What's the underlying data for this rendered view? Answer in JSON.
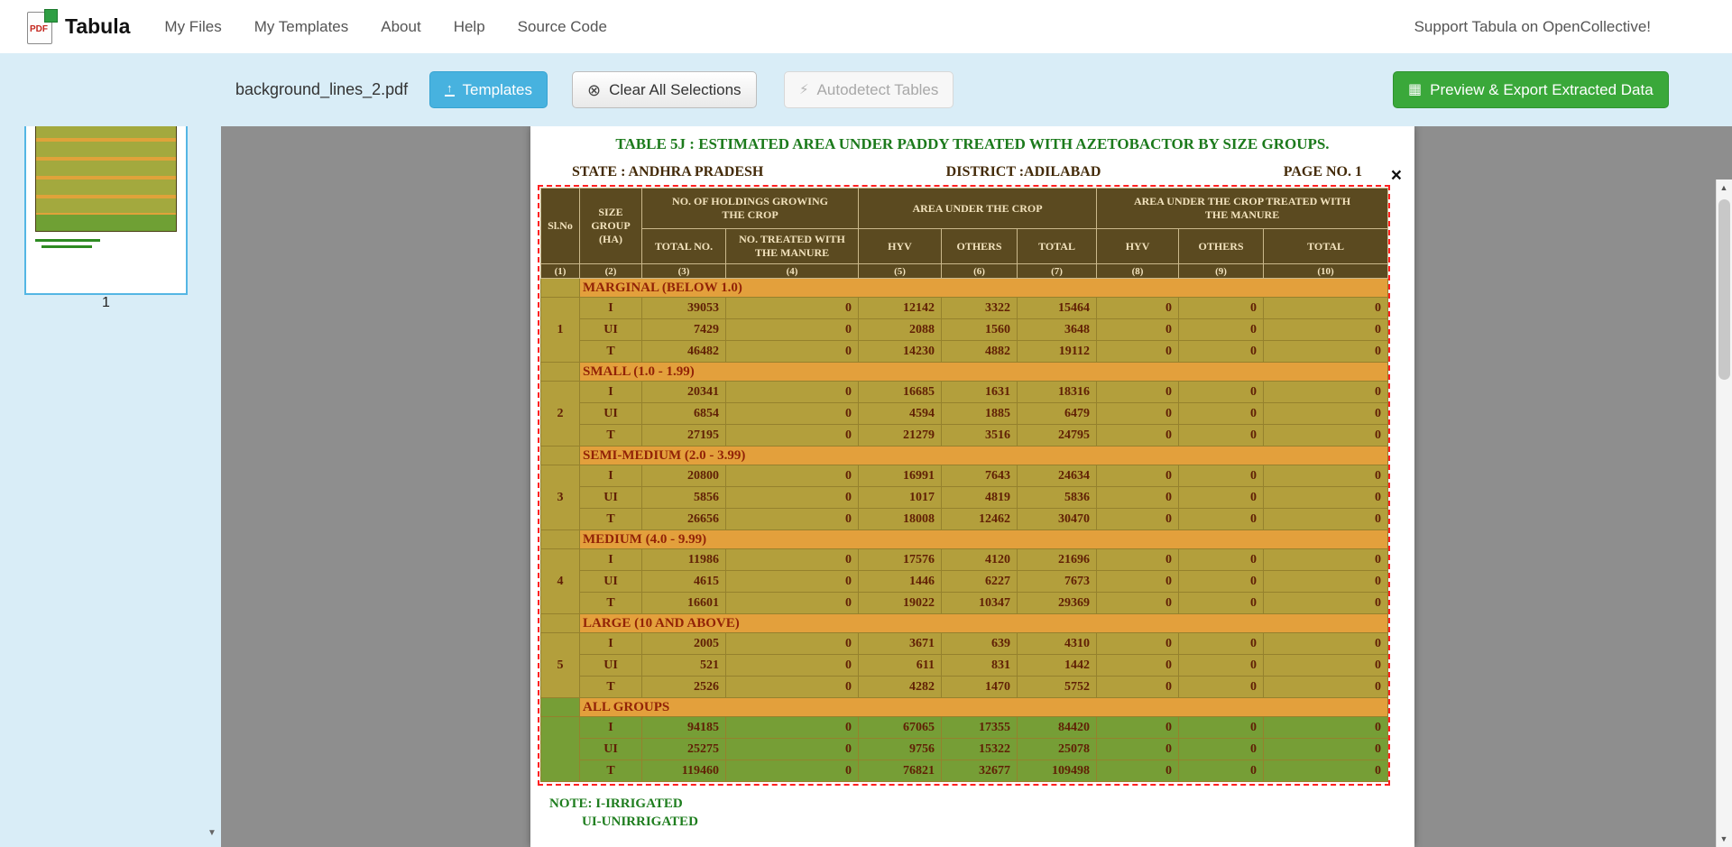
{
  "colors": {
    "toolbar_bg": "#d9edf7",
    "templates_blue": "#47b2df",
    "export_green": "#3aa83a",
    "selection_red": "#ff2020",
    "table_header_olive": "#564a1e",
    "group_band_orange": "#e3a33b",
    "row_olive": "#b1a23b",
    "row_green": "#72a135",
    "doc_green": "#1c7a1c",
    "workspace_gray": "#8e8e8e"
  },
  "icons": {
    "templates_upload": "↑",
    "clear_circle": "⊗",
    "lightning": "⚡",
    "table_grid": "▦",
    "close": "×",
    "scroll_up": "▲",
    "scroll_down": "▼"
  },
  "nav": {
    "brand": "Tabula",
    "logo_text": "PDF",
    "items": [
      {
        "label": "My Files"
      },
      {
        "label": "My Templates"
      },
      {
        "label": "About"
      },
      {
        "label": "Help"
      },
      {
        "label": "Source Code"
      }
    ],
    "support_link": "Support Tabula on OpenCollective!"
  },
  "toolbar": {
    "filename": "background_lines_2.pdf",
    "templates_button": "Templates",
    "clear_selections_button": "Clear All Selections",
    "autodetect_button": "Autodetect Tables",
    "export_button": "Preview & Export Extracted Data"
  },
  "sidebar": {
    "page_number": "1"
  },
  "document": {
    "title": "TABLE 5J : ESTIMATED AREA UNDER PADDY  TREATED WITH AZETOBACTOR BY SIZE GROUPS.",
    "state_line": "STATE : ANDHRA PRADESH",
    "district_line": "DISTRICT :ADILABAD",
    "page_line": "PAGE NO. 1",
    "notes": [
      "NOTE: I-IRRIGATED",
      "UI-UNIRRIGATED"
    ],
    "table": {
      "header": {
        "col_sl": "Sl.No",
        "col_size": "SIZE\nGROUP\n(HA)",
        "col_holdings": "NO. OF HOLDINGS GROWING\nTHE CROP",
        "col_area": "AREA UNDER THE CROP",
        "col_area_treated": "AREA UNDER THE CROP TREATED WITH\nTHE MANURE",
        "sub": [
          "TOTAL NO.",
          "NO. TREATED WITH\nTHE MANURE",
          "HYV",
          "OTHERS",
          "TOTAL",
          "HYV",
          "OTHERS",
          "TOTAL"
        ],
        "col_numbers": [
          "(1)",
          "(2)",
          "(3)",
          "(4)",
          "(5)",
          "(6)",
          "(7)",
          "(8)",
          "(9)",
          "(10)"
        ]
      },
      "groups": [
        {
          "sl_no": "1",
          "name": "MARGINAL (BELOW 1.0)",
          "green": false,
          "rows": [
            {
              "label": "I",
              "values": [
                "39053",
                "0",
                "12142",
                "3322",
                "15464",
                "0",
                "0",
                "0"
              ]
            },
            {
              "label": "UI",
              "values": [
                "7429",
                "0",
                "2088",
                "1560",
                "3648",
                "0",
                "0",
                "0"
              ]
            },
            {
              "label": "T",
              "values": [
                "46482",
                "0",
                "14230",
                "4882",
                "19112",
                "0",
                "0",
                "0"
              ]
            }
          ]
        },
        {
          "sl_no": "2",
          "name": "SMALL (1.0 - 1.99)",
          "green": false,
          "rows": [
            {
              "label": "I",
              "values": [
                "20341",
                "0",
                "16685",
                "1631",
                "18316",
                "0",
                "0",
                "0"
              ]
            },
            {
              "label": "UI",
              "values": [
                "6854",
                "0",
                "4594",
                "1885",
                "6479",
                "0",
                "0",
                "0"
              ]
            },
            {
              "label": "T",
              "values": [
                "27195",
                "0",
                "21279",
                "3516",
                "24795",
                "0",
                "0",
                "0"
              ]
            }
          ]
        },
        {
          "sl_no": "3",
          "name": "SEMI-MEDIUM (2.0 - 3.99)",
          "green": false,
          "rows": [
            {
              "label": "I",
              "values": [
                "20800",
                "0",
                "16991",
                "7643",
                "24634",
                "0",
                "0",
                "0"
              ]
            },
            {
              "label": "UI",
              "values": [
                "5856",
                "0",
                "1017",
                "4819",
                "5836",
                "0",
                "0",
                "0"
              ]
            },
            {
              "label": "T",
              "values": [
                "26656",
                "0",
                "18008",
                "12462",
                "30470",
                "0",
                "0",
                "0"
              ]
            }
          ]
        },
        {
          "sl_no": "4",
          "name": "MEDIUM (4.0 - 9.99)",
          "green": false,
          "rows": [
            {
              "label": "I",
              "values": [
                "11986",
                "0",
                "17576",
                "4120",
                "21696",
                "0",
                "0",
                "0"
              ]
            },
            {
              "label": "UI",
              "values": [
                "4615",
                "0",
                "1446",
                "6227",
                "7673",
                "0",
                "0",
                "0"
              ]
            },
            {
              "label": "T",
              "values": [
                "16601",
                "0",
                "19022",
                "10347",
                "29369",
                "0",
                "0",
                "0"
              ]
            }
          ]
        },
        {
          "sl_no": "5",
          "name": "LARGE (10 AND ABOVE)",
          "green": false,
          "rows": [
            {
              "label": "I",
              "values": [
                "2005",
                "0",
                "3671",
                "639",
                "4310",
                "0",
                "0",
                "0"
              ]
            },
            {
              "label": "UI",
              "values": [
                "521",
                "0",
                "611",
                "831",
                "1442",
                "0",
                "0",
                "0"
              ]
            },
            {
              "label": "T",
              "values": [
                "2526",
                "0",
                "4282",
                "1470",
                "5752",
                "0",
                "0",
                "0"
              ]
            }
          ]
        },
        {
          "sl_no": "",
          "name": "ALL GROUPS",
          "green": true,
          "rows": [
            {
              "label": "I",
              "values": [
                "94185",
                "0",
                "67065",
                "17355",
                "84420",
                "0",
                "0",
                "0"
              ]
            },
            {
              "label": "UI",
              "values": [
                "25275",
                "0",
                "9756",
                "15322",
                "25078",
                "0",
                "0",
                "0"
              ]
            },
            {
              "label": "T",
              "values": [
                "119460",
                "0",
                "76821",
                "32677",
                "109498",
                "0",
                "0",
                "0"
              ]
            }
          ]
        }
      ]
    }
  }
}
